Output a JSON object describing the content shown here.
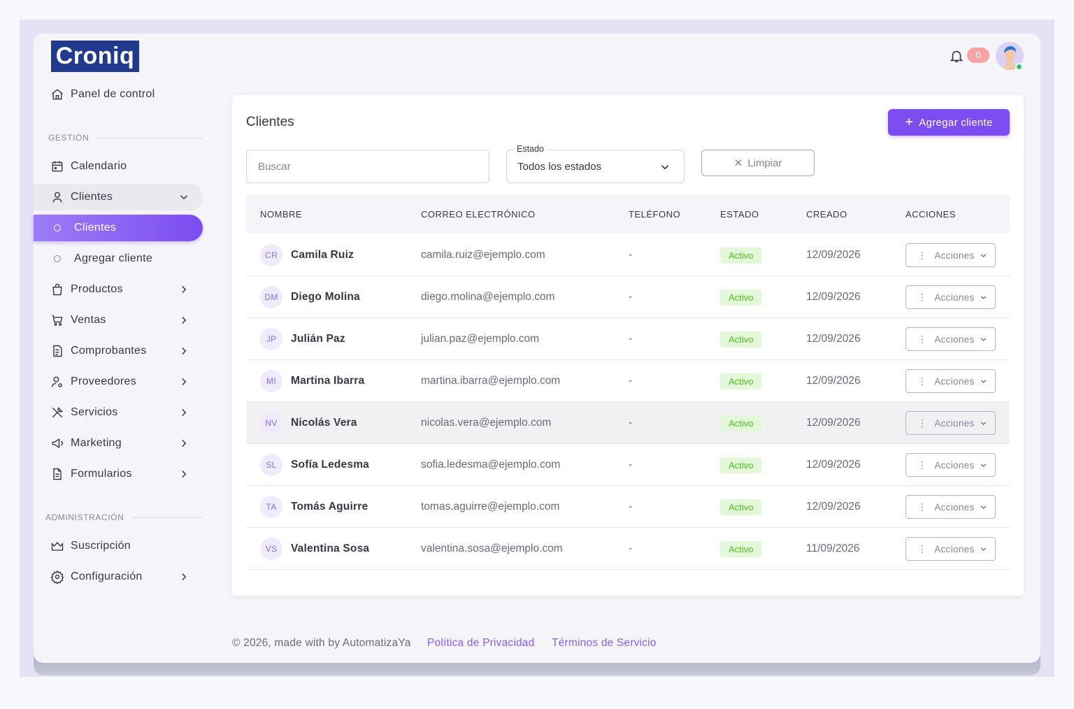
{
  "brand": {
    "logo_text": "Croniq"
  },
  "sidebar": {
    "dashboard": "Panel de control",
    "section_gestion": "GESTIÓN",
    "calendar": "Calendario",
    "clients_group": "Clientes",
    "clients_list": "Clientes",
    "add_client": "Agregar cliente",
    "products": "Productos",
    "sales": "Ventas",
    "receipts": "Comprobantes",
    "suppliers": "Proveedores",
    "services": "Servicios",
    "marketing": "Marketing",
    "forms": "Formularios",
    "section_admin": "ADMINISTRACIÓN",
    "subscription": "Suscripción",
    "settings": "Configuración"
  },
  "topbar": {
    "notification_count": "0"
  },
  "main": {
    "title": "Clientes",
    "add_button": "Agregar cliente",
    "search_placeholder": "Buscar",
    "status_label": "Estado",
    "status_value": "Todos los estados",
    "clear_button": "Limpiar"
  },
  "table": {
    "headers": [
      "NOMBRE",
      "CORREO ELECTRÓNICO",
      "TELÉFONO",
      "ESTADO",
      "CREADO",
      "ACCIONES"
    ],
    "action_label": "Acciones",
    "rows": [
      {
        "initials": "CR",
        "name": "Camila Ruiz",
        "email": "camila.ruiz@ejemplo.com",
        "phone": "-",
        "status": "Activo",
        "created": "12/09/2026"
      },
      {
        "initials": "DM",
        "name": "Diego Molina",
        "email": "diego.molina@ejemplo.com",
        "phone": "-",
        "status": "Activo",
        "created": "12/09/2026"
      },
      {
        "initials": "JP",
        "name": "Julián Paz",
        "email": "julian.paz@ejemplo.com",
        "phone": "-",
        "status": "Activo",
        "created": "12/09/2026"
      },
      {
        "initials": "MI",
        "name": "Martina Ibarra",
        "email": "martina.ibarra@ejemplo.com",
        "phone": "-",
        "status": "Activo",
        "created": "12/09/2026"
      },
      {
        "initials": "NV",
        "name": "Nicolás Vera",
        "email": "nicolas.vera@ejemplo.com",
        "phone": "-",
        "status": "Activo",
        "created": "12/09/2026"
      },
      {
        "initials": "SL",
        "name": "Sofía Ledesma",
        "email": "sofia.ledesma@ejemplo.com",
        "phone": "-",
        "status": "Activo",
        "created": "12/09/2026"
      },
      {
        "initials": "TA",
        "name": "Tomás Aguirre",
        "email": "tomas.aguirre@ejemplo.com",
        "phone": "-",
        "status": "Activo",
        "created": "12/09/2026"
      },
      {
        "initials": "VS",
        "name": "Valentina Sosa",
        "email": "valentina.sosa@ejemplo.com",
        "phone": "-",
        "status": "Activo",
        "created": "11/09/2026"
      }
    ]
  },
  "footer": {
    "copyright": "© 2026, made with by AutomatizaYa",
    "privacy": "Política de Privacidad",
    "terms": "Términos de Servicio"
  },
  "colors": {
    "accent": "#7c4df0",
    "logo_bg": "#223a8e",
    "active_badge": "#4fbf24",
    "link": "#8a5cf0"
  }
}
